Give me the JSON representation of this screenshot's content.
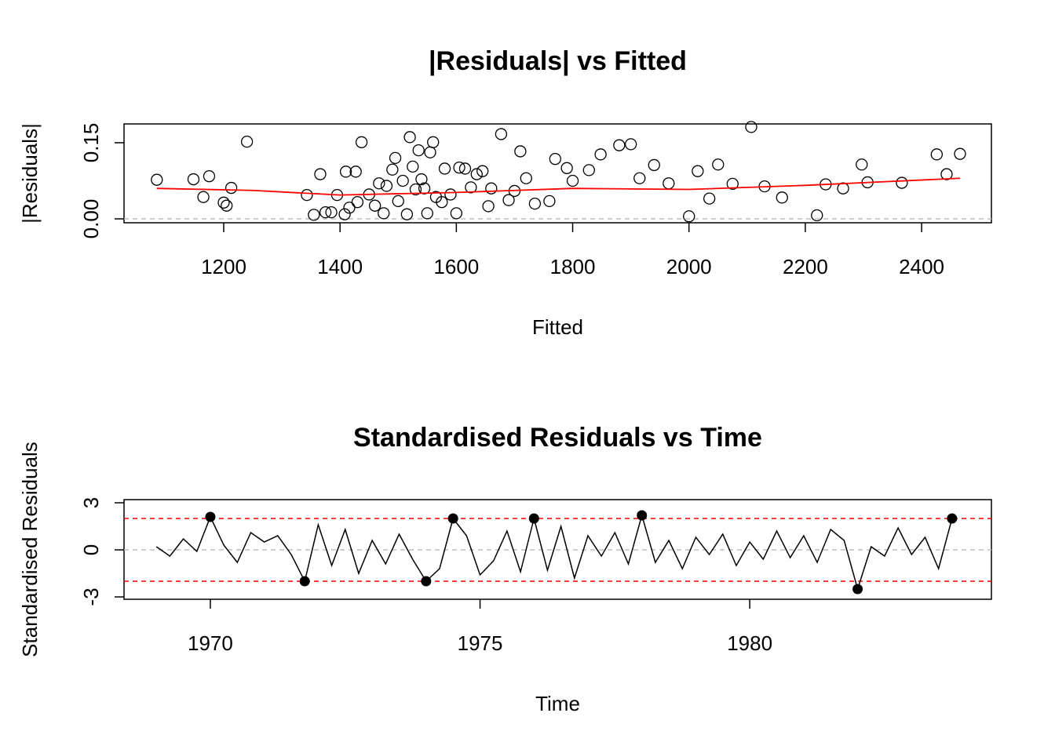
{
  "chart_data": [
    {
      "type": "scatter",
      "title": "|Residuals| vs Fitted",
      "x_label": "Fitted",
      "y_label": "|Residuals|",
      "x": [
        1085,
        1148,
        1165,
        1175,
        1200,
        1205,
        1213,
        1240,
        1343,
        1355,
        1366,
        1375,
        1385,
        1395,
        1408,
        1410,
        1416,
        1427,
        1430,
        1437,
        1450,
        1460,
        1467,
        1475,
        1480,
        1490,
        1495,
        1500,
        1508,
        1515,
        1520,
        1525,
        1530,
        1535,
        1540,
        1545,
        1550,
        1555,
        1560,
        1565,
        1575,
        1580,
        1590,
        1600,
        1605,
        1615,
        1625,
        1635,
        1645,
        1655,
        1660,
        1677,
        1690,
        1700,
        1710,
        1720,
        1735,
        1760,
        1770,
        1790,
        1800,
        1828,
        1848,
        1880,
        1900,
        1915,
        1940,
        1965,
        2000,
        2015,
        2035,
        2050,
        2075,
        2107,
        2130,
        2160,
        2220,
        2235,
        2265,
        2297,
        2307,
        2366,
        2426,
        2443,
        2466
      ],
      "values": [
        0.077,
        0.078,
        0.043,
        0.084,
        0.032,
        0.026,
        0.061,
        0.152,
        0.047,
        0.008,
        0.088,
        0.013,
        0.013,
        0.047,
        0.009,
        0.093,
        0.022,
        0.093,
        0.033,
        0.151,
        0.048,
        0.026,
        0.07,
        0.011,
        0.065,
        0.097,
        0.12,
        0.035,
        0.075,
        0.009,
        0.161,
        0.103,
        0.058,
        0.135,
        0.078,
        0.06,
        0.011,
        0.131,
        0.151,
        0.043,
        0.033,
        0.099,
        0.048,
        0.011,
        0.101,
        0.099,
        0.062,
        0.088,
        0.094,
        0.025,
        0.06,
        0.167,
        0.037,
        0.055,
        0.133,
        0.08,
        0.03,
        0.035,
        0.118,
        0.1,
        0.075,
        0.096,
        0.127,
        0.145,
        0.147,
        0.08,
        0.106,
        0.07,
        0.005,
        0.094,
        0.04,
        0.107,
        0.069,
        0.181,
        0.064,
        0.042,
        0.007,
        0.068,
        0.06,
        0.107,
        0.072,
        0.071,
        0.127,
        0.088,
        0.128
      ],
      "color": "#000000",
      "trend": {
        "color": "#ff0000",
        "x": [
          1085,
          1250,
          1400,
          1600,
          1800,
          2000,
          2200,
          2466
        ],
        "values": [
          0.06,
          0.056,
          0.047,
          0.052,
          0.06,
          0.058,
          0.066,
          0.08
        ]
      },
      "reference_lines": [
        {
          "value": 0,
          "color": "#bebebe"
        }
      ],
      "xlim": [
        1028.6,
        2520
      ],
      "xticks": [
        1200,
        1400,
        1600,
        1800,
        2000,
        2200,
        2400
      ],
      "ylim": [
        -0.0077,
        0.187
      ],
      "yticks": [
        {
          "value": 0,
          "label": "0.00"
        },
        {
          "value": 0.15,
          "label": "0.15"
        }
      ]
    },
    {
      "type": "line",
      "title": "Standardised Residuals vs Time",
      "x_label": "Time",
      "y_label": "Standardised Residuals",
      "x": [
        1969,
        1969.25,
        1969.5,
        1969.75,
        1970,
        1970.25,
        1970.5,
        1970.75,
        1971,
        1971.25,
        1971.5,
        1971.75,
        1972,
        1972.25,
        1972.5,
        1972.75,
        1973,
        1973.25,
        1973.5,
        1973.75,
        1974,
        1974.25,
        1974.5,
        1974.75,
        1975,
        1975.25,
        1975.5,
        1975.75,
        1976,
        1976.25,
        1976.5,
        1976.75,
        1977,
        1977.25,
        1977.5,
        1977.75,
        1978,
        1978.25,
        1978.5,
        1978.75,
        1979,
        1979.25,
        1979.5,
        1979.75,
        1980,
        1980.25,
        1980.5,
        1980.75,
        1981,
        1981.25,
        1981.5,
        1981.75,
        1982,
        1982.25,
        1982.5,
        1982.75,
        1983,
        1983.25,
        1983.5,
        1983.75
      ],
      "values": [
        0.2,
        -0.4,
        0.7,
        -0.1,
        2.1,
        0.3,
        -0.8,
        1.1,
        0.5,
        0.9,
        -0.3,
        -2.0,
        1.6,
        -1.0,
        1.3,
        -1.5,
        0.6,
        -0.9,
        1.0,
        -0.6,
        -2.0,
        -1.2,
        2.0,
        0.9,
        -1.6,
        -0.7,
        1.2,
        -1.4,
        2.0,
        -1.3,
        1.5,
        -1.8,
        0.9,
        -0.4,
        1.1,
        -0.9,
        2.2,
        -0.8,
        0.6,
        -1.2,
        0.8,
        -0.3,
        1.0,
        -1.0,
        0.5,
        -0.6,
        1.2,
        -0.5,
        0.9,
        -0.8,
        1.3,
        0.6,
        -2.5,
        0.2,
        -0.4,
        1.4,
        -0.3,
        0.8,
        -1.2,
        2.0
      ],
      "color": "#000000",
      "outlier_index": [
        4,
        11,
        20,
        22,
        28,
        36,
        52,
        59
      ],
      "reference_lines": [
        {
          "value": 0,
          "color": "#bebebe"
        },
        {
          "value": 2,
          "color": "#ff0000"
        },
        {
          "value": -2,
          "color": "#ff0000"
        }
      ],
      "xlim": [
        1968.4,
        1984.48
      ],
      "xticks": [
        1970,
        1975,
        1980
      ],
      "ylim": [
        -3.15,
        3.2
      ],
      "yticks": [
        -3,
        0,
        3
      ]
    }
  ]
}
